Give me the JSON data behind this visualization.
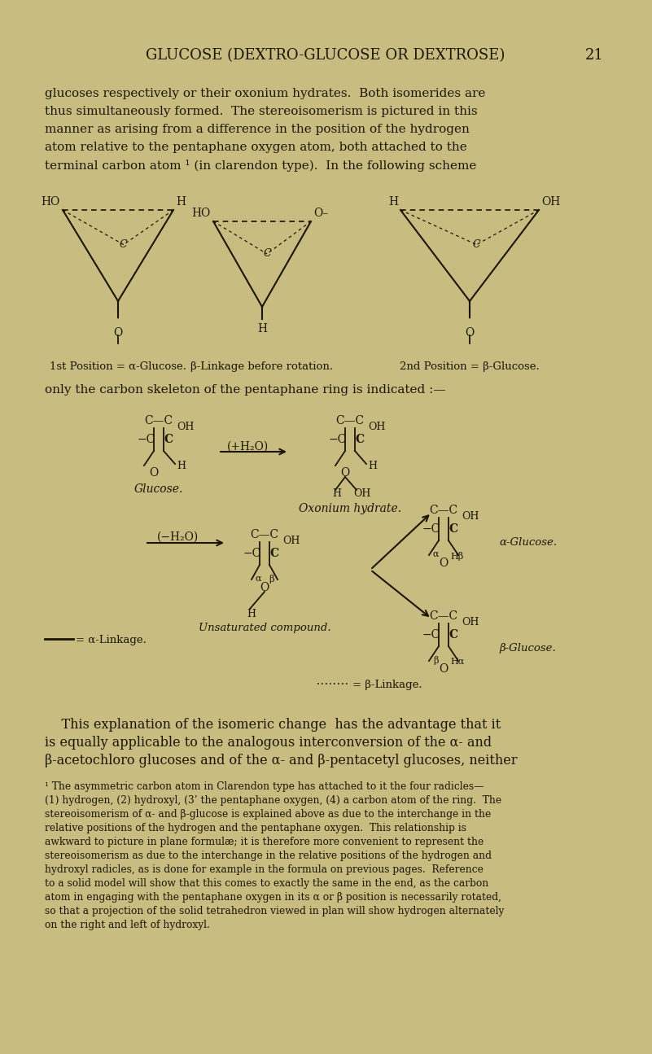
{
  "bg_color": "#c9bc80",
  "text_color": "#1a1505",
  "title": "GLUCOSE (DEXTRO-GLUCOSE OR DEXTROSE)",
  "page_number": "21",
  "body_lines": [
    "glucoses respectively or their oxonium hydrates.  Both isomerides are",
    "thus simultaneously formed.  The stereoisomerism is pictured in this",
    "manner as arising from a difference in the position of the hydrogen",
    "atom relative to the pentaphane oxygen atom, both attached to the",
    "terminal carbon atom ¹ (in clarendon type).  In the following scheme"
  ],
  "label_1st": "1st Position = α-Glucose.",
  "label_beta": "β-Linkage before rotation.",
  "label_2nd": "2nd Position = β-Glucose.",
  "only_text": "only the carbon skeleton of the pentaphane ring is indicated :—",
  "expl_lines": [
    "    This explanation of the isomeric change  has the advantage that it",
    "is equally applicable to the analogous interconversion of the α- and",
    "β-acetochloro glucoses and of the α- and β-pentacetyl glucoses, neither"
  ],
  "fn_lines": [
    "¹ The asymmetric carbon atom in Clarendon type has attached to it the four radicles—",
    "(1) hydrogen, (2) hydroxyl, (3’ the pentaphane oxygen, (4) a carbon atom of the ring.  The",
    "stereoisomerism of α- and β-glucose is explained above as due to the interchange in the",
    "relative positions of the hydrogen and the pentaphane oxygen.  This relationship is",
    "awkward to picture in plane formulæ; it is therefore more convenient to represent the",
    "stereoisomerism as due to the interchange in the relative positions of the hydrogen and",
    "hydroxyl radicles, as is done for example in the formula on previous pages.  Reference",
    "to a solid model will show that this comes to exactly the same in the end, as the carbon",
    "atom in engaging with the pentaphane oxygen in its α or β position is necessarily rotated,",
    "so that a projection of the solid tetrahedron viewed in plan will show hydrogen alternately",
    "on the right and left of hydroxyl."
  ]
}
